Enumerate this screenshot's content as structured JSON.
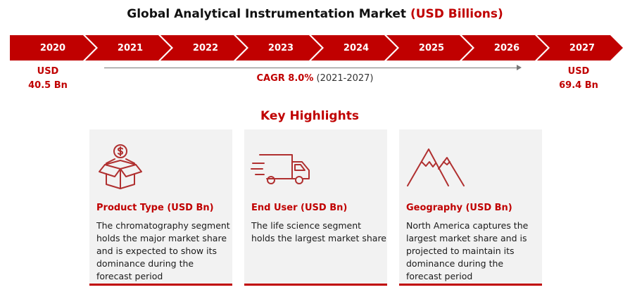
{
  "header": {
    "title_main": "Global Analytical Instrumentation Market",
    "title_accent": "(USD Billions)"
  },
  "timeline": {
    "years": [
      "2020",
      "2021",
      "2022",
      "2023",
      "2024",
      "2025",
      "2026",
      "2027"
    ],
    "start_value": {
      "line1": "USD",
      "line2": "40.5 Bn"
    },
    "end_value": {
      "line1": "USD",
      "line2": "69.4 Bn"
    },
    "cagr_label": "CAGR 8.0%",
    "cagr_period": "(2021-2027)"
  },
  "highlights": {
    "title": "Key Highlights",
    "cards": [
      {
        "icon": "money-box-icon",
        "heading": "Product Type (USD Bn)",
        "text": "The chromatography segment holds the major market share and is expected to show its dominance during the forecast period"
      },
      {
        "icon": "delivery-truck-icon",
        "heading": "End User (USD Bn)",
        "text": "The life science segment holds the largest market share"
      },
      {
        "icon": "mountains-icon",
        "heading": "Geography (USD Bn)",
        "text": "North America captures the largest market share and is projected to maintain its dominance during the forecast period"
      }
    ]
  },
  "colors": {
    "accent": "#c00000",
    "card_bg": "#f2f2f2"
  },
  "chart_data": {
    "type": "table",
    "title": "Global Analytical Instrumentation Market (USD Billions)",
    "categories": [
      "2020",
      "2021",
      "2022",
      "2023",
      "2024",
      "2025",
      "2026",
      "2027"
    ],
    "values": [
      40.5,
      null,
      null,
      null,
      null,
      null,
      null,
      69.4
    ],
    "cagr_percent": 8.0,
    "cagr_period": "2021-2027"
  }
}
